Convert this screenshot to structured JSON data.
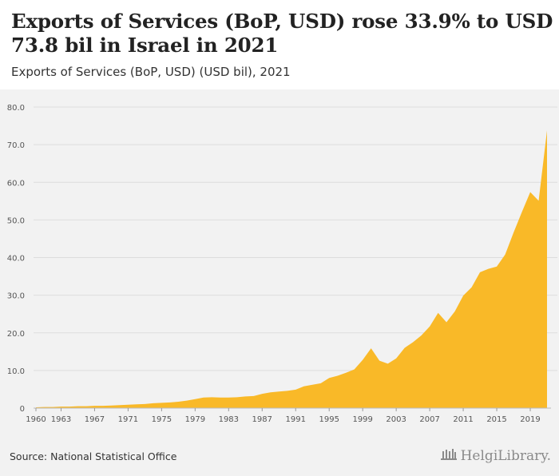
{
  "title": "Exports of Services (BoP, USD) rose 33.9% to USD 73.8 bil in Israel in 2021",
  "subtitle": "Exports of Services (BoP, USD) (USD bil), 2021",
  "source": "Source: National Statistical Office",
  "brand": "HelgiLibrary.",
  "colors": {
    "area": "#f9b928",
    "background": "#f2f2f2",
    "grid": "#dddddd"
  },
  "chart_data": {
    "type": "area",
    "title": "Exports of Services (BoP, USD) rose 33.9% to USD 73.8 bil in Israel in 2021",
    "subtitle": "Exports of Services (BoP, USD) (USD bil), 2021",
    "xlabel": "",
    "ylabel": "",
    "ylim": [
      0,
      80
    ],
    "yticks": [
      0,
      10,
      20,
      30,
      40,
      50,
      60,
      70,
      80
    ],
    "yticklabels": [
      "0",
      "10.0",
      "20.0",
      "30.0",
      "40.0",
      "50.0",
      "60.0",
      "70.0",
      "80.0"
    ],
    "xticks": [
      1960,
      1963,
      1967,
      1971,
      1975,
      1979,
      1983,
      1987,
      1991,
      1995,
      1999,
      2003,
      2007,
      2011,
      2015,
      2019
    ],
    "xticklabels": [
      "1960",
      "1963",
      "1967",
      "1971",
      "1975",
      "1979",
      "1983",
      "1987",
      "1991",
      "1995",
      "1999",
      "2003",
      "2007",
      "2011",
      "2015",
      "2019"
    ],
    "grid": true,
    "x": [
      1960,
      1961,
      1962,
      1963,
      1964,
      1965,
      1966,
      1967,
      1968,
      1969,
      1970,
      1971,
      1972,
      1973,
      1974,
      1975,
      1976,
      1977,
      1978,
      1979,
      1980,
      1981,
      1982,
      1983,
      1984,
      1985,
      1986,
      1987,
      1988,
      1989,
      1990,
      1991,
      1992,
      1993,
      1994,
      1995,
      1996,
      1997,
      1998,
      1999,
      2000,
      2001,
      2002,
      2003,
      2004,
      2005,
      2006,
      2007,
      2008,
      2009,
      2010,
      2011,
      2012,
      2013,
      2014,
      2015,
      2016,
      2017,
      2018,
      2019,
      2020,
      2021
    ],
    "series": [
      {
        "values": [
          0.2,
          0.3,
          0.3,
          0.4,
          0.4,
          0.5,
          0.5,
          0.6,
          0.6,
          0.7,
          0.8,
          0.9,
          1.0,
          1.1,
          1.3,
          1.4,
          1.5,
          1.7,
          2.0,
          2.4,
          2.8,
          2.9,
          2.8,
          2.8,
          2.9,
          3.1,
          3.2,
          3.8,
          4.2,
          4.4,
          4.6,
          4.9,
          5.8,
          6.2,
          6.6,
          8.0,
          8.6,
          9.4,
          10.3,
          12.8,
          15.9,
          12.6,
          11.8,
          13.2,
          16.0,
          17.5,
          19.3,
          21.7,
          25.3,
          22.8,
          25.7,
          29.9,
          32.1,
          36.1,
          37.0,
          37.6,
          40.8,
          46.6,
          52.1,
          57.4,
          55.1,
          73.8
        ]
      }
    ]
  }
}
